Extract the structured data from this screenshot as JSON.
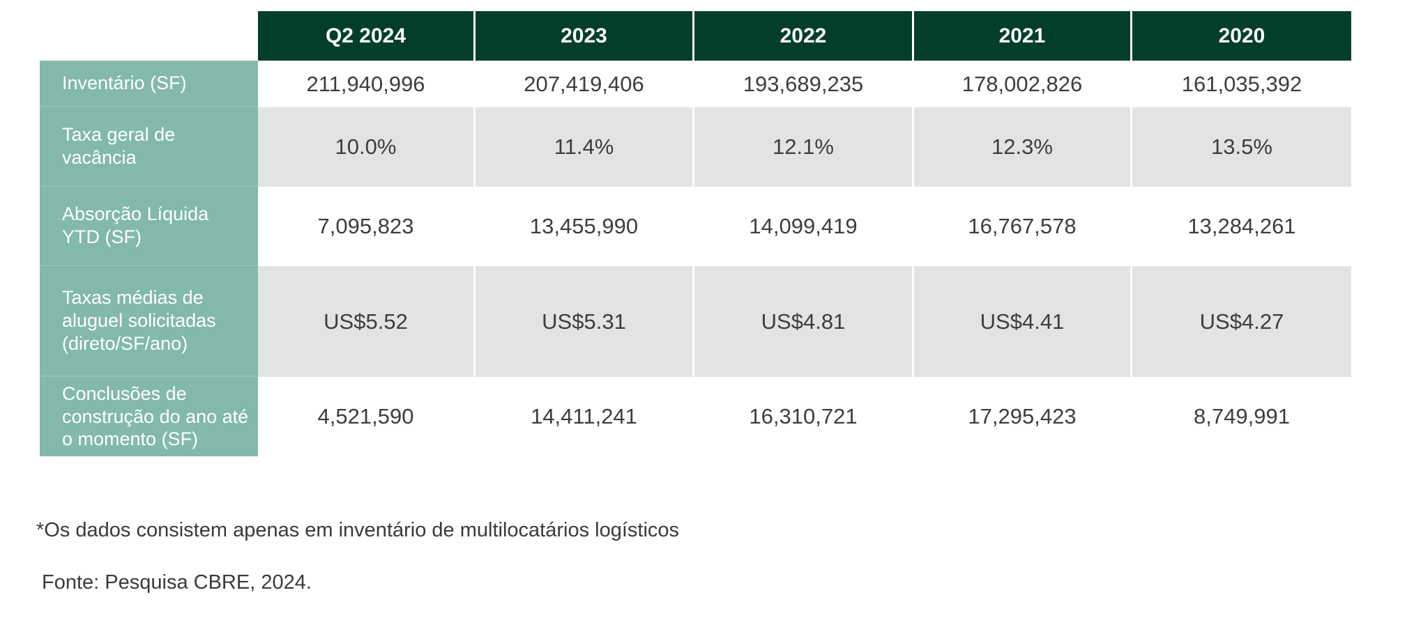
{
  "chart_data": {
    "type": "table",
    "columns": [
      "Q2 2024",
      "2023",
      "2022",
      "2021",
      "2020"
    ],
    "rows": [
      {
        "label": "Inventário (SF)",
        "values": [
          "211,940,996",
          "207,419,406",
          "193,689,235",
          "178,002,826",
          "161,035,392"
        ]
      },
      {
        "label": "Taxa geral de vacância",
        "values": [
          "10.0%",
          "11.4%",
          "12.1%",
          "12.3%",
          "13.5%"
        ]
      },
      {
        "label": "Absorção Líquida YTD (SF)",
        "values": [
          "7,095,823",
          "13,455,990",
          "14,099,419",
          "16,767,578",
          "13,284,261"
        ]
      },
      {
        "label": "Taxas médias de aluguel solicitadas (direto/SF/ano)",
        "values": [
          "US$5.52",
          "US$5.31",
          "US$4.81",
          "US$4.41",
          "US$4.27"
        ]
      },
      {
        "label": "Conclusões de construção do ano até o momento (SF)",
        "values": [
          "4,521,590",
          "14,411,241",
          "16,310,721",
          "17,295,423",
          "8,749,991"
        ]
      }
    ]
  },
  "footnote": "*Os dados consistem apenas em inventário de multilocatários logísticos",
  "source": "Fonte: Pesquisa CBRE, 2024.",
  "colors": {
    "header_bg": "#033e2d",
    "label_bg": "#82b9ab",
    "shaded_row": "#e3e3e3"
  }
}
